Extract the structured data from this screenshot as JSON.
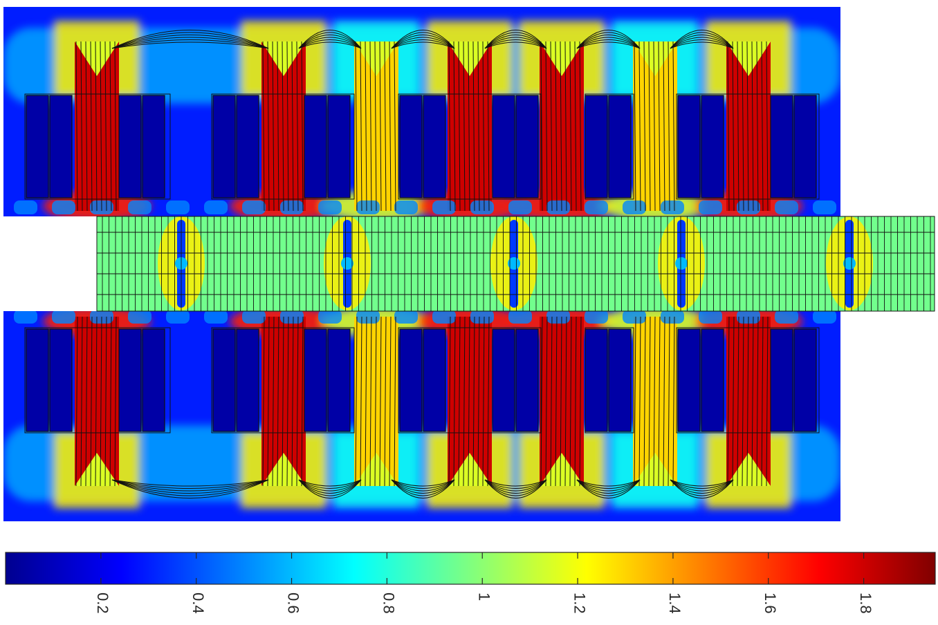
{
  "chart_data": {
    "type": "heatmap",
    "title": "",
    "xlabel": "",
    "ylabel": "",
    "colormap": "jet",
    "colorbar": {
      "orientation": "horizontal",
      "placement": "bottom",
      "range": [
        0.0,
        1.95
      ],
      "ticks": [
        0.2,
        0.4,
        0.6,
        0.8,
        1,
        1.2,
        1.4,
        1.6,
        1.8
      ],
      "tick_labels": [
        "0.2",
        "0.4",
        "0.6",
        "0.8",
        "1",
        "1.2",
        "1.4",
        "1.6",
        "1.8"
      ],
      "tick_label_rotation_deg": 90
    },
    "field_levels": {
      "slot": 0.05,
      "back_iron": 0.3,
      "yoke_fringe": 0.7,
      "mover": 0.95,
      "mover_barrier": 0.35,
      "mover_ring": 1.25,
      "airgap_pad": 0.5,
      "tooth_wedge": 1.15
    },
    "teeth": [
      {
        "index": 1,
        "level": 1.8
      },
      {
        "index": 2,
        "level": 1.8
      },
      {
        "index": 3,
        "level": 1.3
      },
      {
        "index": 4,
        "level": 1.8
      },
      {
        "index": 5,
        "level": 1.8
      },
      {
        "index": 6,
        "level": 1.3
      },
      {
        "index": 7,
        "level": 1.8
      }
    ],
    "grid": false,
    "legend": "none"
  }
}
